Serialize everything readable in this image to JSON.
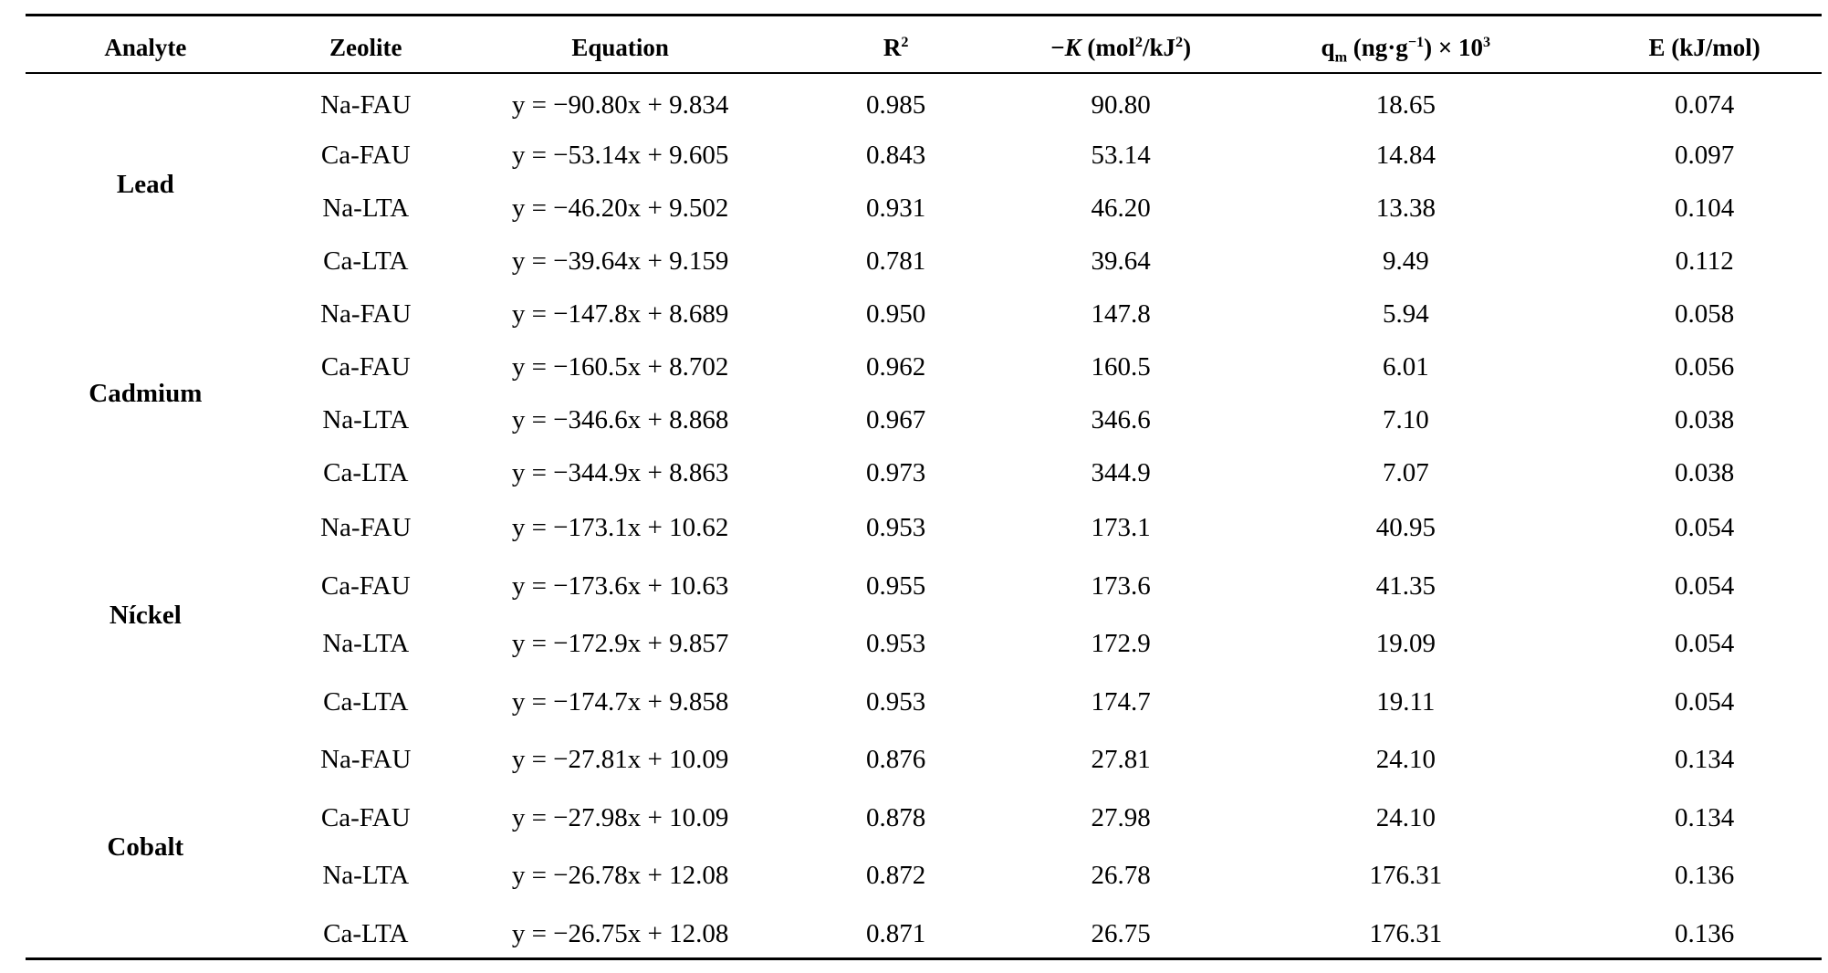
{
  "headers": {
    "analyte": "Analyte",
    "zeolite": "Zeolite",
    "equation": "Equation",
    "r2_base": "R",
    "r2_sup": "2",
    "k_prefix": "−",
    "k_var": "K",
    "k_unit_a": " (mol",
    "k_unit_a_sup": "2",
    "k_unit_b": "/kJ",
    "k_unit_b_sup": "2",
    "k_unit_c": ")",
    "qm_base": "q",
    "qm_sub": "m",
    "qm_unit_a": " (ng·g",
    "qm_unit_a_sup": "−1",
    "qm_unit_b": ") × 10",
    "qm_unit_b_sup": "3",
    "e": "E (kJ/mol)"
  },
  "groups": [
    {
      "analyte": "Lead",
      "rows": [
        {
          "zeolite": "Na-FAU",
          "equation": "y = −90.80x + 9.834",
          "r2": "0.985",
          "k": "90.80",
          "qm": "18.65",
          "e": "0.074"
        },
        {
          "zeolite": "Ca-FAU",
          "equation": "y = −53.14x + 9.605",
          "r2": "0.843",
          "k": "53.14",
          "qm": "14.84",
          "e": "0.097"
        },
        {
          "zeolite": "Na-LTA",
          "equation": "y = −46.20x + 9.502",
          "r2": "0.931",
          "k": "46.20",
          "qm": "13.38",
          "e": "0.104"
        },
        {
          "zeolite": "Ca-LTA",
          "equation": "y = −39.64x + 9.159",
          "r2": "0.781",
          "k": "39.64",
          "qm": "9.49",
          "e": "0.112"
        }
      ]
    },
    {
      "analyte": "Cadmium",
      "rows": [
        {
          "zeolite": "Na-FAU",
          "equation": "y = −147.8x + 8.689",
          "r2": "0.950",
          "k": "147.8",
          "qm": "5.94",
          "e": "0.058"
        },
        {
          "zeolite": "Ca-FAU",
          "equation": "y = −160.5x + 8.702",
          "r2": "0.962",
          "k": "160.5",
          "qm": "6.01",
          "e": "0.056"
        },
        {
          "zeolite": "Na-LTA",
          "equation": "y = −346.6x + 8.868",
          "r2": "0.967",
          "k": "346.6",
          "qm": "7.10",
          "e": "0.038"
        },
        {
          "zeolite": "Ca-LTA",
          "equation": "y = −344.9x + 8.863",
          "r2": "0.973",
          "k": "344.9",
          "qm": "7.07",
          "e": "0.038"
        }
      ]
    },
    {
      "analyte": "Níckel",
      "rows": [
        {
          "zeolite": "Na-FAU",
          "equation": "y = −173.1x + 10.62",
          "r2": "0.953",
          "k": "173.1",
          "qm": "40.95",
          "e": "0.054"
        },
        {
          "zeolite": "Ca-FAU",
          "equation": "y = −173.6x + 10.63",
          "r2": "0.955",
          "k": "173.6",
          "qm": "41.35",
          "e": "0.054"
        },
        {
          "zeolite": "Na-LTA",
          "equation": "y = −172.9x + 9.857",
          "r2": "0.953",
          "k": "172.9",
          "qm": "19.09",
          "e": "0.054"
        },
        {
          "zeolite": "Ca-LTA",
          "equation": "y = −174.7x + 9.858",
          "r2": "0.953",
          "k": "174.7",
          "qm": "19.11",
          "e": "0.054"
        }
      ]
    },
    {
      "analyte": "Cobalt",
      "rows": [
        {
          "zeolite": "Na-FAU",
          "equation": "y = −27.81x + 10.09",
          "r2": "0.876",
          "k": "27.81",
          "qm": "24.10",
          "e": "0.134"
        },
        {
          "zeolite": "Ca-FAU",
          "equation": "y = −27.98x + 10.09",
          "r2": "0.878",
          "k": "27.98",
          "qm": "24.10",
          "e": "0.134"
        },
        {
          "zeolite": "Na-LTA",
          "equation": "y = −26.78x + 12.08",
          "r2": "0.872",
          "k": "26.78",
          "qm": "176.31",
          "e": "0.136"
        },
        {
          "zeolite": "Ca-LTA",
          "equation": "y = −26.75x + 12.08",
          "r2": "0.871",
          "k": "26.75",
          "qm": "176.31",
          "e": "0.136"
        }
      ]
    }
  ]
}
